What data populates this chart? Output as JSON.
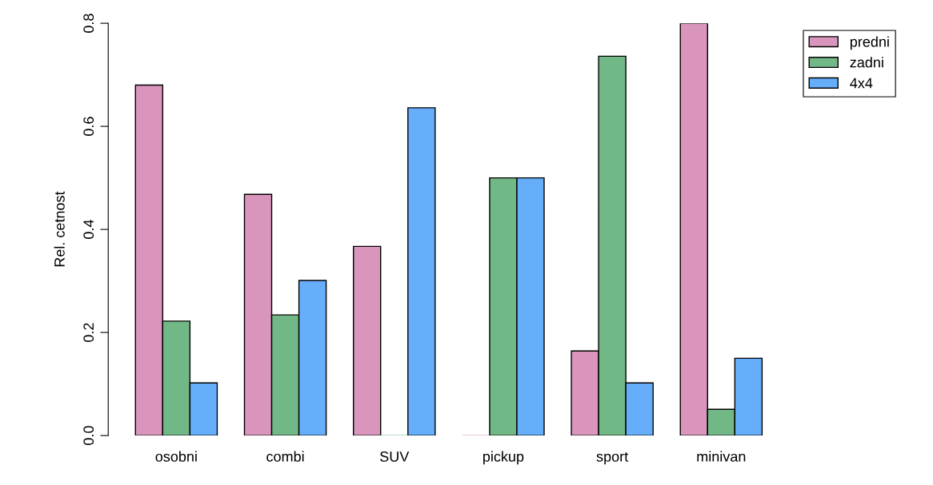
{
  "chart_data": {
    "type": "bar",
    "ylabel": "Rel. cetnost",
    "categories": [
      "osobni",
      "combi",
      "SUV",
      "pickup",
      "sport",
      "minivan"
    ],
    "series": [
      {
        "name": "predni",
        "color": "#d995bb",
        "values": [
          0.68,
          0.468,
          0.367,
          0,
          0.164,
          0.8
        ]
      },
      {
        "name": "zadni",
        "color": "#72b886",
        "values": [
          0.222,
          0.234,
          0,
          0.5,
          0.736,
          0.051
        ]
      },
      {
        "name": "4x4",
        "color": "#66aefa",
        "values": [
          0.102,
          0.301,
          0.636,
          0.5,
          0.102,
          0.15
        ]
      }
    ],
    "ylim": [
      0,
      0.8
    ],
    "yticks": [
      {
        "value": 0,
        "label": "0.0"
      },
      {
        "value": 0.2,
        "label": "0.2"
      },
      {
        "value": 0.4,
        "label": "0.4"
      },
      {
        "value": 0.6,
        "label": "0.6"
      },
      {
        "value": 0.8,
        "label": "0.8"
      }
    ],
    "grid": false,
    "legend": "top right"
  }
}
